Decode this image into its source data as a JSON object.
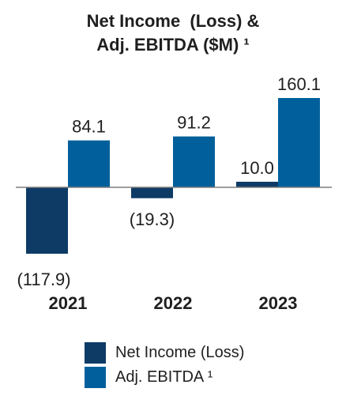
{
  "chart_data": {
    "type": "bar",
    "title_lines": [
      "Net Income  (Loss) &",
      "Adj. EBITDA ($M) ¹"
    ],
    "categories": [
      "2021",
      "2022",
      "2023"
    ],
    "series": [
      {
        "name": "Net Income (Loss)",
        "color": "#0d3b66",
        "values": [
          -117.9,
          -19.3,
          10.0
        ],
        "labels": [
          "(117.9)",
          "(19.3)",
          "10.0"
        ]
      },
      {
        "name": "Adj. EBITDA ¹",
        "color": "#01609b",
        "values": [
          84.1,
          91.2,
          160.1
        ],
        "labels": [
          "84.1",
          "91.2",
          "160.1"
        ]
      }
    ],
    "ylim": [
      -117.9,
      160.1
    ],
    "grid": false,
    "legend_position": "bottom"
  }
}
